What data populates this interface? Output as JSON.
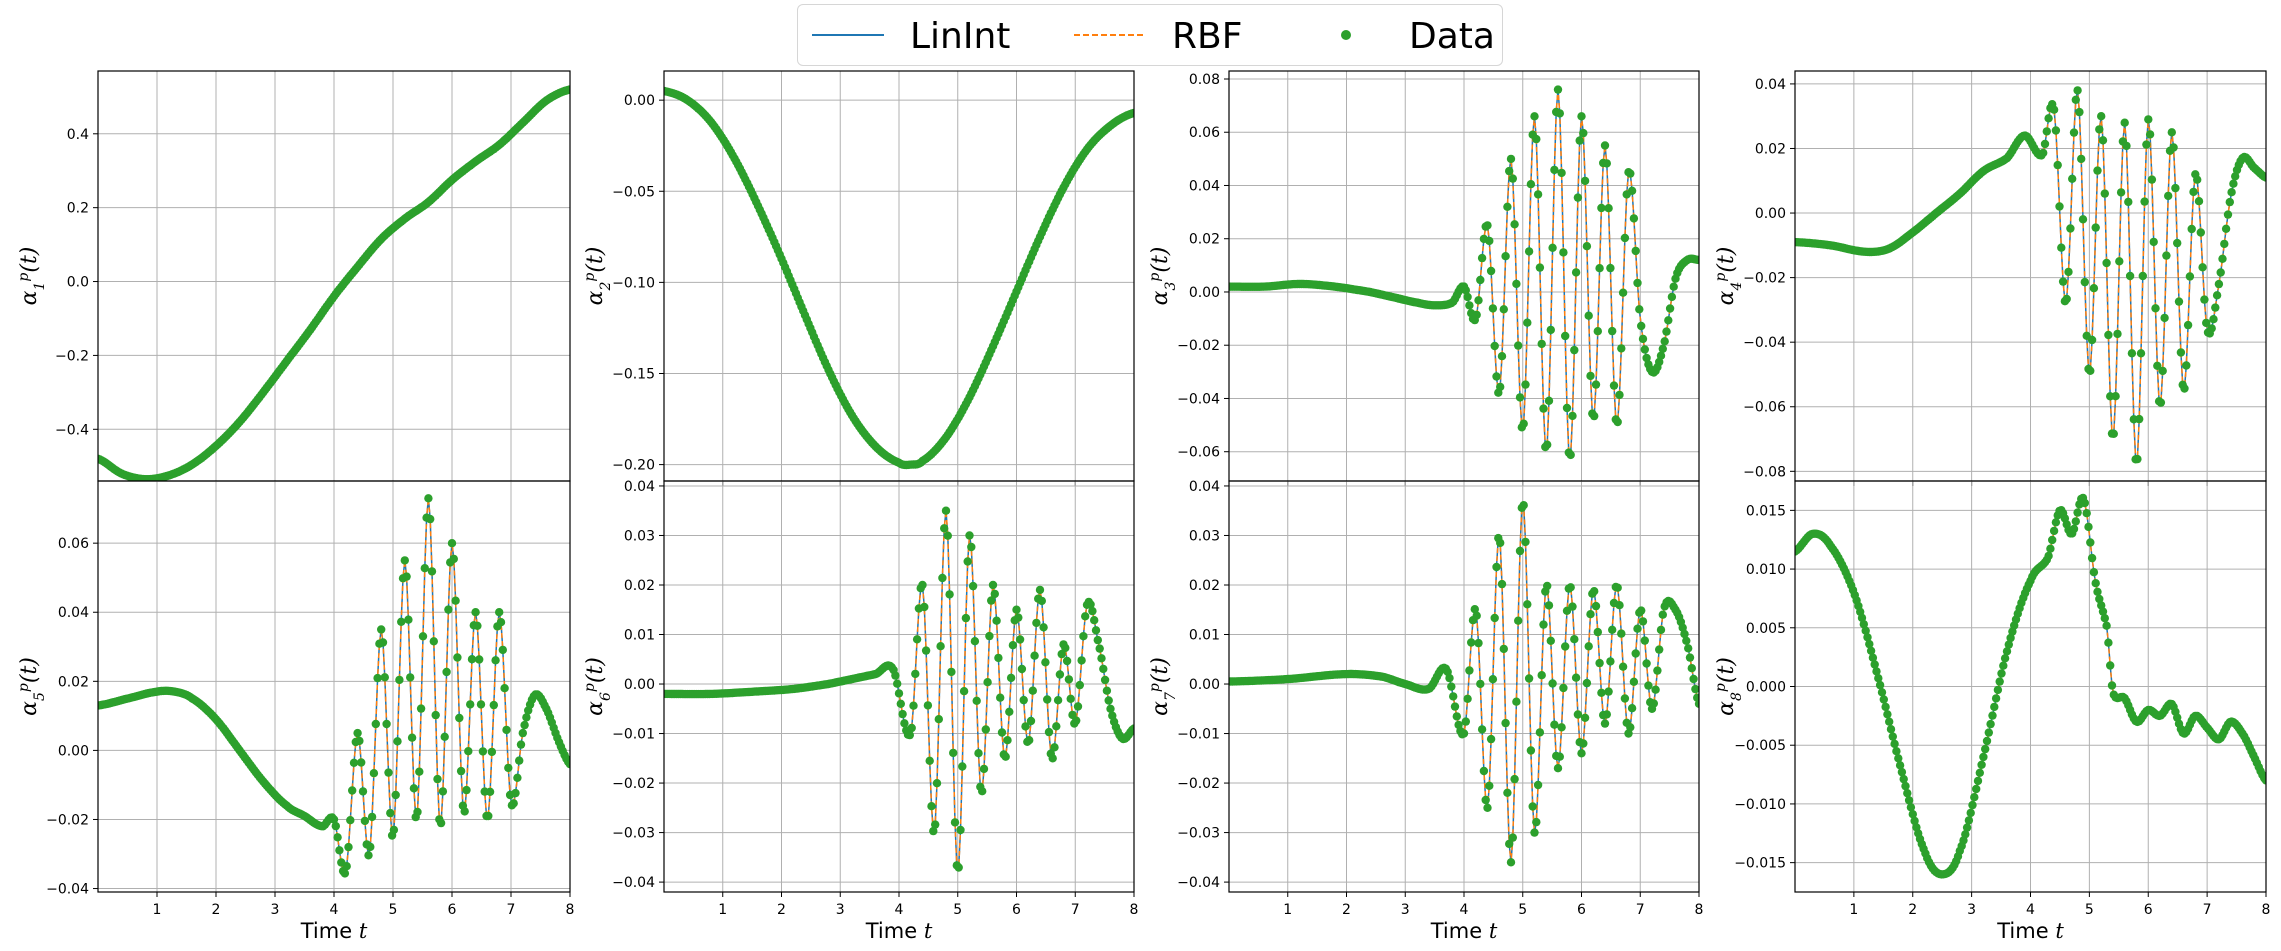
{
  "legend": {
    "items": [
      {
        "label": "LinInt",
        "style": "solid",
        "color": "#1f77b4"
      },
      {
        "label": "RBF",
        "style": "dashed",
        "color": "#ff7f0e"
      },
      {
        "label": "Data",
        "style": "marker",
        "color": "#2ca02c"
      }
    ]
  },
  "colors": {
    "lin": "#1f77b4",
    "rbf": "#ff7f0e",
    "data": "#2ca02c",
    "grid": "#b0b0b0"
  },
  "chart_data": [
    {
      "type": "line",
      "index": 1,
      "ylabel": "α₁ᵖ(t)",
      "xlabel": "",
      "xlim": [
        0,
        8
      ],
      "ylim": [
        -0.54,
        0.57
      ],
      "yticks": [
        -0.4,
        -0.2,
        0.0,
        0.2,
        0.4
      ],
      "ytick_labels": [
        "−0.4",
        "−0.2",
        "0.0",
        "0.2",
        "0.4"
      ],
      "series": [
        {
          "x": [
            0,
            0.4,
            0.8,
            1.2,
            1.6,
            2.0,
            2.4,
            2.8,
            3.2,
            3.6,
            4.0,
            4.4,
            4.8,
            5.2,
            5.6,
            6.0,
            6.4,
            6.8,
            7.2,
            7.6,
            8.0
          ],
          "y": [
            -0.48,
            -0.52,
            -0.535,
            -0.525,
            -0.495,
            -0.445,
            -0.38,
            -0.3,
            -0.215,
            -0.13,
            -0.04,
            0.04,
            0.115,
            0.17,
            0.215,
            0.275,
            0.325,
            0.37,
            0.43,
            0.49,
            0.52
          ]
        }
      ]
    },
    {
      "type": "line",
      "index": 2,
      "ylabel": "α₂ᵖ(t)",
      "xlabel": "",
      "xlim": [
        0,
        8
      ],
      "ylim": [
        -0.209,
        0.016
      ],
      "yticks": [
        -0.2,
        -0.15,
        -0.1,
        -0.05,
        0.0
      ],
      "ytick_labels": [
        "−0.20",
        "−0.15",
        "−0.10",
        "−0.05",
        "0.00"
      ],
      "series": [
        {
          "x": [
            0,
            0.4,
            0.8,
            1.2,
            1.6,
            2.0,
            2.4,
            2.8,
            3.2,
            3.6,
            4.0,
            4.2,
            4.4,
            4.8,
            5.2,
            5.6,
            6.0,
            6.4,
            6.8,
            7.2,
            7.6,
            8.0
          ],
          "y": [
            0.005,
            0.0,
            -0.012,
            -0.032,
            -0.058,
            -0.087,
            -0.118,
            -0.148,
            -0.173,
            -0.19,
            -0.199,
            -0.2,
            -0.198,
            -0.185,
            -0.163,
            -0.135,
            -0.105,
            -0.075,
            -0.048,
            -0.027,
            -0.014,
            -0.007
          ]
        }
      ]
    },
    {
      "type": "line",
      "index": 3,
      "ylabel": "α₃ᵖ(t)",
      "xlabel": "",
      "xlim": [
        0,
        8
      ],
      "ylim": [
        -0.071,
        0.083
      ],
      "yticks": [
        -0.06,
        -0.04,
        -0.02,
        0.0,
        0.02,
        0.04,
        0.06,
        0.08
      ],
      "ytick_labels": [
        "−0.06",
        "−0.04",
        "−0.02",
        "0.00",
        "0.02",
        "0.04",
        "0.06",
        "0.08"
      ],
      "series": [
        {
          "x": [
            0,
            0.6,
            1.2,
            1.8,
            2.4,
            2.8,
            3.2,
            3.5,
            3.8,
            4.0,
            4.2,
            4.4,
            4.6,
            4.8,
            5.0,
            5.2,
            5.4,
            5.6,
            5.8,
            6.0,
            6.2,
            6.4,
            6.6,
            6.8,
            7.0,
            7.2,
            7.4,
            7.6,
            7.8,
            8.0
          ],
          "y": [
            0.002,
            0.002,
            0.003,
            0.002,
            0.0,
            -0.002,
            -0.004,
            -0.005,
            -0.004,
            0.002,
            -0.01,
            0.025,
            -0.038,
            0.05,
            -0.052,
            0.066,
            -0.06,
            0.076,
            -0.063,
            0.066,
            -0.048,
            0.055,
            -0.05,
            0.045,
            -0.01,
            -0.03,
            -0.02,
            0.005,
            0.012,
            0.012
          ]
        }
      ]
    },
    {
      "type": "line",
      "index": 4,
      "ylabel": "α₄ᵖ(t)",
      "xlabel": "",
      "xlim": [
        0,
        8
      ],
      "ylim": [
        -0.083,
        0.044
      ],
      "yticks": [
        -0.08,
        -0.06,
        -0.04,
        -0.02,
        0.0,
        0.02,
        0.04
      ],
      "ytick_labels": [
        "−0.08",
        "−0.06",
        "−0.04",
        "−0.02",
        "0.00",
        "0.02",
        "0.04"
      ],
      "series": [
        {
          "x": [
            0,
            0.6,
            1.2,
            1.6,
            2.0,
            2.4,
            2.8,
            3.2,
            3.6,
            3.9,
            4.2,
            4.4,
            4.6,
            4.8,
            5.0,
            5.2,
            5.4,
            5.6,
            5.8,
            6.0,
            6.2,
            6.4,
            6.6,
            6.8,
            7.0,
            7.2,
            7.4,
            7.6,
            7.8,
            8.0
          ],
          "y": [
            -0.009,
            -0.01,
            -0.012,
            -0.011,
            -0.006,
            0.0,
            0.006,
            0.013,
            0.017,
            0.024,
            0.018,
            0.032,
            -0.028,
            0.038,
            -0.05,
            0.03,
            -0.07,
            0.028,
            -0.078,
            0.029,
            -0.06,
            0.025,
            -0.055,
            0.012,
            -0.036,
            -0.022,
            0.005,
            0.017,
            0.014,
            0.011
          ]
        }
      ]
    },
    {
      "type": "line",
      "index": 5,
      "ylabel": "α₅ᵖ(t)",
      "xlabel": "Time t",
      "xlim": [
        0,
        8
      ],
      "ylim": [
        -0.041,
        0.078
      ],
      "yticks": [
        -0.04,
        -0.02,
        0.0,
        0.02,
        0.04,
        0.06
      ],
      "ytick_labels": [
        "−0.04",
        "−0.02",
        "0.00",
        "0.02",
        "0.04",
        "0.06"
      ],
      "xticks": [
        1,
        2,
        3,
        4,
        5,
        6,
        7,
        8
      ],
      "xtick_labels": [
        "1",
        "2",
        "3",
        "4",
        "5",
        "6",
        "7",
        "8"
      ],
      "series": [
        {
          "x": [
            0,
            0.5,
            1.0,
            1.3,
            1.6,
            2.0,
            2.4,
            2.8,
            3.2,
            3.5,
            3.8,
            4.0,
            4.2,
            4.4,
            4.6,
            4.8,
            5.0,
            5.2,
            5.4,
            5.6,
            5.8,
            6.0,
            6.2,
            6.4,
            6.6,
            6.8,
            7.0,
            7.2,
            7.4,
            7.6,
            7.8,
            8.0
          ],
          "y": [
            0.013,
            0.015,
            0.017,
            0.017,
            0.015,
            0.009,
            0.0,
            -0.009,
            -0.016,
            -0.019,
            -0.022,
            -0.02,
            -0.035,
            0.005,
            -0.03,
            0.035,
            -0.025,
            0.055,
            -0.02,
            0.073,
            -0.022,
            0.06,
            -0.018,
            0.04,
            -0.02,
            0.04,
            -0.015,
            0.005,
            0.016,
            0.012,
            0.003,
            -0.004
          ]
        }
      ]
    },
    {
      "type": "line",
      "index": 6,
      "ylabel": "α₆ᵖ(t)",
      "xlabel": "Time t",
      "xlim": [
        0,
        8
      ],
      "ylim": [
        -0.042,
        0.041
      ],
      "yticks": [
        -0.04,
        -0.03,
        -0.02,
        -0.01,
        0.0,
        0.01,
        0.02,
        0.03,
        0.04
      ],
      "ytick_labels": [
        "−0.04",
        "−0.03",
        "−0.02",
        "−0.01",
        "0.00",
        "0.01",
        "0.02",
        "0.03",
        "0.04"
      ],
      "xticks": [
        1,
        2,
        3,
        4,
        5,
        6,
        7,
        8
      ],
      "xtick_labels": [
        "1",
        "2",
        "3",
        "4",
        "5",
        "6",
        "7",
        "8"
      ],
      "series": [
        {
          "x": [
            0,
            0.8,
            1.6,
            2.2,
            2.8,
            3.2,
            3.6,
            3.9,
            4.2,
            4.4,
            4.6,
            4.8,
            5.0,
            5.2,
            5.4,
            5.6,
            5.8,
            6.0,
            6.2,
            6.4,
            6.6,
            6.8,
            7.0,
            7.2,
            7.4,
            7.6,
            7.8,
            8.0
          ],
          "y": [
            -0.002,
            -0.002,
            -0.0015,
            -0.001,
            0.0,
            0.001,
            0.002,
            0.003,
            -0.01,
            0.02,
            -0.03,
            0.035,
            -0.038,
            0.03,
            -0.022,
            0.02,
            -0.015,
            0.015,
            -0.012,
            0.019,
            -0.015,
            0.008,
            -0.008,
            0.016,
            0.008,
            -0.005,
            -0.011,
            -0.009
          ]
        }
      ]
    },
    {
      "type": "line",
      "index": 7,
      "ylabel": "α₇ᵖ(t)",
      "xlabel": "Time t",
      "xlim": [
        0,
        8
      ],
      "ylim": [
        -0.042,
        0.041
      ],
      "yticks": [
        -0.04,
        -0.03,
        -0.02,
        -0.01,
        0.0,
        0.01,
        0.02,
        0.03,
        0.04
      ],
      "ytick_labels": [
        "−0.04",
        "−0.03",
        "−0.02",
        "−0.01",
        "0.00",
        "0.01",
        "0.02",
        "0.03",
        "0.04"
      ],
      "xticks": [
        1,
        2,
        3,
        4,
        5,
        6,
        7,
        8
      ],
      "xtick_labels": [
        "1",
        "2",
        "3",
        "4",
        "5",
        "6",
        "7",
        "8"
      ],
      "series": [
        {
          "x": [
            0,
            1.0,
            2.0,
            2.6,
            3.0,
            3.4,
            3.7,
            4.0,
            4.2,
            4.4,
            4.6,
            4.8,
            5.0,
            5.2,
            5.4,
            5.6,
            5.8,
            6.0,
            6.2,
            6.4,
            6.6,
            6.8,
            7.0,
            7.2,
            7.4,
            7.6,
            7.8,
            8.0
          ],
          "y": [
            0.0005,
            0.001,
            0.002,
            0.0015,
            0.0,
            -0.001,
            0.003,
            -0.01,
            0.015,
            -0.025,
            0.03,
            -0.036,
            0.037,
            -0.03,
            0.02,
            -0.017,
            0.02,
            -0.014,
            0.019,
            -0.008,
            0.02,
            -0.01,
            0.015,
            -0.005,
            0.015,
            0.015,
            0.008,
            -0.004
          ]
        }
      ]
    },
    {
      "type": "line",
      "index": 8,
      "ylabel": "α₈ᵖ(t)",
      "xlabel": "Time t",
      "xlim": [
        0,
        8
      ],
      "ylim": [
        -0.0175,
        0.0175
      ],
      "yticks": [
        -0.015,
        -0.01,
        -0.005,
        0.0,
        0.005,
        0.01,
        0.015
      ],
      "ytick_labels": [
        "−0.015",
        "−0.010",
        "−0.005",
        "0.000",
        "0.005",
        "0.010",
        "0.015"
      ],
      "xticks": [
        1,
        2,
        3,
        4,
        5,
        6,
        7,
        8
      ],
      "xtick_labels": [
        "1",
        "2",
        "3",
        "4",
        "5",
        "6",
        "7",
        "8"
      ],
      "series": [
        {
          "x": [
            0,
            0.3,
            0.6,
            1.0,
            1.4,
            1.8,
            2.2,
            2.5,
            2.8,
            3.2,
            3.6,
            4.0,
            4.3,
            4.5,
            4.7,
            4.9,
            5.1,
            5.3,
            5.4,
            5.6,
            5.8,
            6.0,
            6.2,
            6.4,
            6.6,
            6.8,
            7.0,
            7.2,
            7.4,
            7.6,
            7.8,
            8.0
          ],
          "y": [
            0.0115,
            0.013,
            0.012,
            0.008,
            0.001,
            -0.007,
            -0.014,
            -0.016,
            -0.014,
            -0.006,
            0.003,
            0.009,
            0.011,
            0.015,
            0.013,
            0.016,
            0.009,
            0.005,
            -0.0005,
            -0.001,
            -0.003,
            -0.002,
            -0.0025,
            -0.0015,
            -0.004,
            -0.0025,
            -0.0035,
            -0.0045,
            -0.003,
            -0.004,
            -0.006,
            -0.008
          ]
        }
      ]
    }
  ]
}
